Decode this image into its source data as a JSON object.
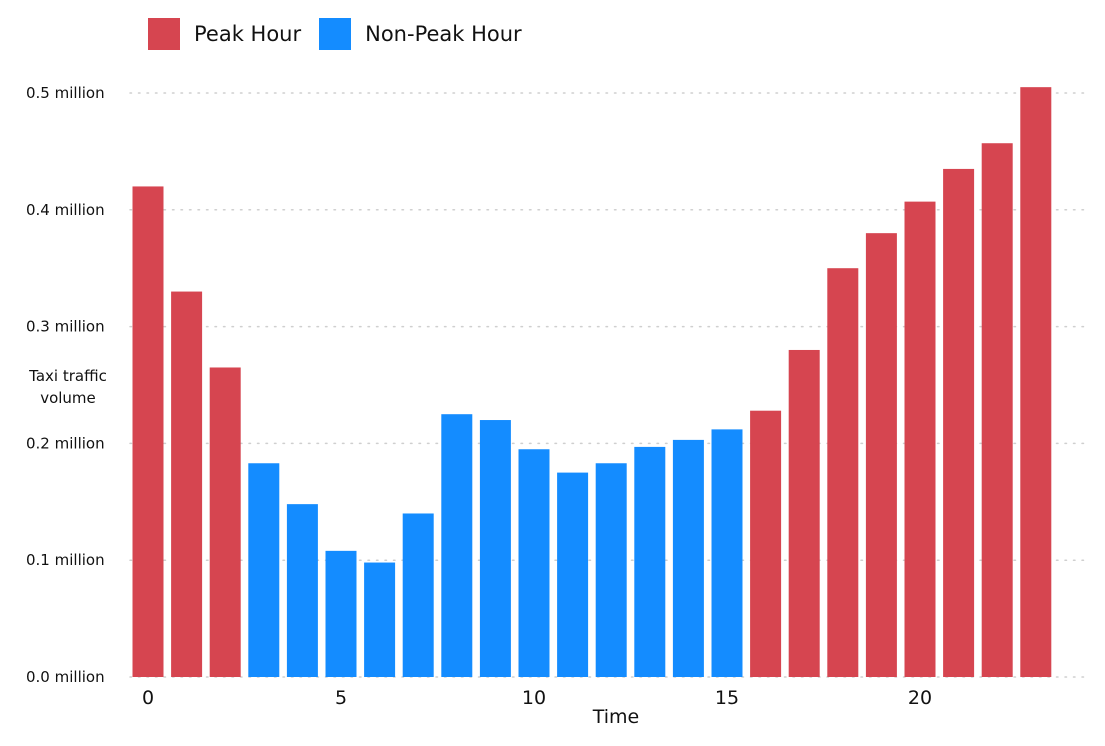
{
  "chart_data": {
    "type": "bar",
    "xlabel": "Time",
    "ylabel": "Taxi traffic volume",
    "ylim": [
      0,
      0.5
    ],
    "yticks": [
      {
        "value": 0.0,
        "label": "0.0 million"
      },
      {
        "value": 0.1,
        "label": "0.1 million"
      },
      {
        "value": 0.2,
        "label": "0.2 million"
      },
      {
        "value": 0.3,
        "label": "0.3 million"
      },
      {
        "value": 0.4,
        "label": "0.4 million"
      },
      {
        "value": 0.5,
        "label": "0.5 million"
      }
    ],
    "xticks": [
      {
        "value": 0,
        "label": "0"
      },
      {
        "value": 5,
        "label": "5"
      },
      {
        "value": 10,
        "label": "10"
      },
      {
        "value": 15,
        "label": "15"
      },
      {
        "value": 20,
        "label": "20"
      }
    ],
    "grid": true,
    "legend_position": "top-left",
    "series": [
      {
        "name": "Peak Hour",
        "color": "#d64550",
        "x": [
          0,
          1,
          2,
          16,
          17,
          18,
          19,
          20,
          21,
          22,
          23
        ],
        "values": [
          0.42,
          0.33,
          0.265,
          0.228,
          0.28,
          0.35,
          0.38,
          0.407,
          0.435,
          0.457,
          0.505
        ]
      },
      {
        "name": "Non-Peak Hour",
        "color": "#148cff",
        "x": [
          3,
          4,
          5,
          6,
          7,
          8,
          9,
          10,
          11,
          12,
          13,
          14,
          15
        ],
        "values": [
          0.183,
          0.148,
          0.108,
          0.098,
          0.14,
          0.225,
          0.22,
          0.195,
          0.175,
          0.183,
          0.197,
          0.203,
          0.212
        ]
      }
    ]
  }
}
